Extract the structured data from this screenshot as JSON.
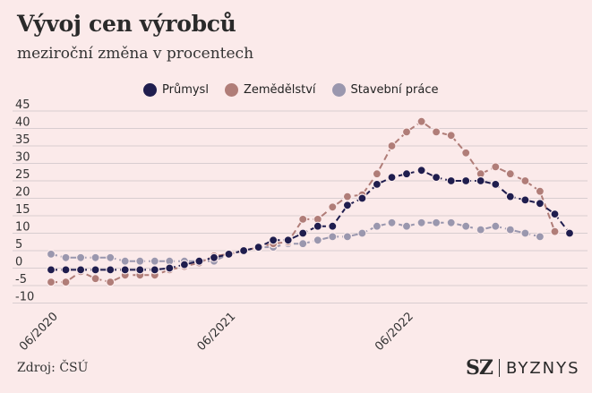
{
  "header": {
    "title": "Vývoj cen výrobců",
    "subtitle": "meziroční změna v procentech"
  },
  "footer": {
    "source": "Zdroj: ČSÚ",
    "brand_left": "SZ",
    "brand_right": "BYZNYS"
  },
  "chart_data": {
    "type": "line",
    "title": "Vývoj cen výrobců",
    "subtitle": "meziroční změna v procentech",
    "ylim": [
      -10,
      45
    ],
    "yticks": [
      45,
      40,
      35,
      30,
      25,
      20,
      15,
      10,
      5,
      0,
      -5,
      -10
    ],
    "grid": true,
    "legend_position": "top",
    "x": [
      "2020-06",
      "2020-07",
      "2020-08",
      "2020-09",
      "2020-10",
      "2020-11",
      "2020-12",
      "2021-01",
      "2021-02",
      "2021-03",
      "2021-04",
      "2021-05",
      "2021-06",
      "2021-07",
      "2021-08",
      "2021-09",
      "2021-10",
      "2021-11",
      "2021-12",
      "2022-01",
      "2022-02",
      "2022-03",
      "2022-04",
      "2022-05",
      "2022-06",
      "2022-07",
      "2022-08",
      "2022-09",
      "2022-10",
      "2022-11",
      "2022-12",
      "2023-01",
      "2023-02",
      "2023-03",
      "2023-04",
      "2023-05"
    ],
    "xtick_labels": [
      {
        "x": "2020-06",
        "label": "06/2020"
      },
      {
        "x": "2021-06",
        "label": "06/2021"
      },
      {
        "x": "2022-06",
        "label": "06/2022"
      }
    ],
    "series": [
      {
        "name": "Průmysl",
        "color": "#1f1d4e",
        "values": [
          -0.5,
          -0.5,
          -0.5,
          -0.5,
          -0.5,
          -0.5,
          -0.5,
          -0.5,
          0,
          1,
          2,
          3,
          4,
          5,
          6,
          8,
          8,
          10,
          12,
          12,
          18,
          20,
          24,
          26,
          27,
          28,
          26,
          25,
          25,
          25,
          24,
          20.5,
          19.5,
          18.5,
          15.5,
          10
        ]
      },
      {
        "name": "Zemědělství",
        "color": "#b07d78",
        "values": [
          -4,
          -4,
          -1,
          -3,
          -4,
          -2,
          -2,
          -2,
          -0.5,
          0.5,
          1.5,
          3.5,
          4,
          5,
          6,
          7,
          7.5,
          14,
          14,
          17.5,
          20.5,
          21,
          27,
          35,
          39,
          42,
          39,
          38,
          33,
          27,
          29,
          27,
          25,
          22,
          10.5,
          null
        ]
      },
      {
        "name": "Stavební práce",
        "color": "#9a97ae",
        "values": [
          4,
          3,
          3,
          3,
          3,
          2,
          2,
          2,
          2,
          2,
          2,
          2,
          4,
          5,
          6,
          6,
          7,
          7,
          8,
          9,
          9,
          10,
          12,
          13,
          12,
          13,
          13,
          13,
          12,
          11,
          12,
          11,
          10,
          9,
          null,
          null
        ]
      }
    ]
  }
}
